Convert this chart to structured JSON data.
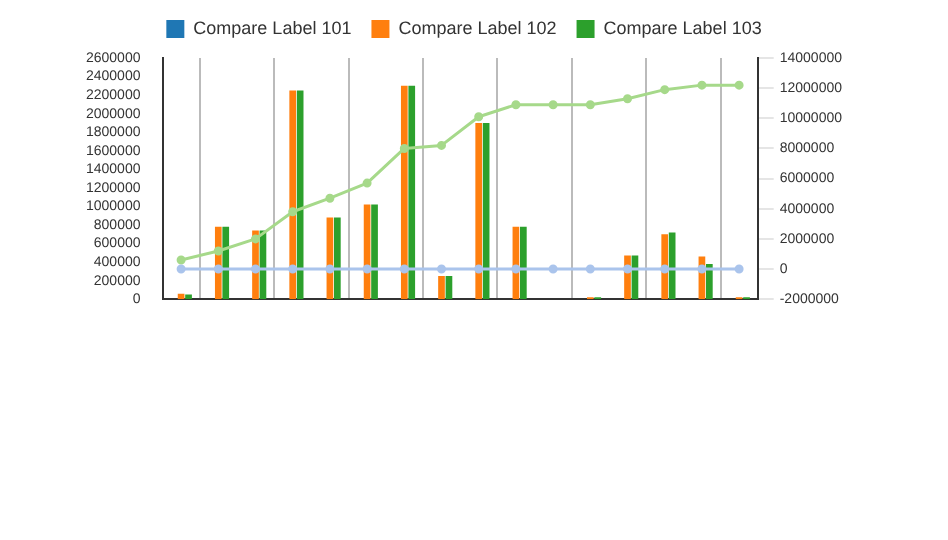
{
  "chart_data": {
    "type": "bar",
    "categories": [
      null,
      null,
      null,
      null,
      null,
      null,
      null,
      null,
      null,
      null,
      null,
      null,
      null,
      null,
      null,
      null
    ],
    "series": [
      {
        "name": "Compare Label 101",
        "color": "#1f77b4",
        "values": [
          0,
          0,
          0,
          0,
          0,
          0,
          0,
          0,
          0,
          0,
          0,
          0,
          0,
          0,
          0,
          0
        ]
      },
      {
        "name": "Compare Label 102",
        "color": "#ff7f0e",
        "values": [
          60000,
          780000,
          740000,
          2250000,
          880000,
          1020000,
          2300000,
          250000,
          1900000,
          780000,
          0,
          20000,
          470000,
          700000,
          460000,
          20000
        ]
      },
      {
        "name": "Compare Label 103",
        "color": "#2ca02c",
        "values": [
          50000,
          780000,
          740000,
          2250000,
          880000,
          1020000,
          2300000,
          250000,
          1900000,
          780000,
          0,
          20000,
          470000,
          720000,
          380000,
          20000
        ]
      },
      {
        "type": "line",
        "axis": "y2",
        "color": "#aac4ec",
        "values": [
          0,
          0,
          0,
          0,
          0,
          0,
          0,
          0,
          0,
          0,
          0,
          0,
          0,
          0,
          0,
          0
        ]
      },
      {
        "type": "line",
        "axis": "y2",
        "color": "#a6d98a",
        "values": [
          600000,
          1200000,
          2000000,
          3800000,
          4700000,
          5700000,
          8000000,
          8200000,
          10100000,
          10900000,
          10900000,
          10900000,
          11300000,
          11900000,
          12200000,
          12200000
        ]
      }
    ],
    "ylim": [
      0,
      2600000
    ],
    "yticks": [
      0,
      200000,
      400000,
      600000,
      800000,
      1000000,
      1200000,
      1400000,
      1600000,
      1800000,
      2000000,
      2200000,
      2400000,
      2600000
    ],
    "y2lim": [
      -2000000,
      14000000
    ],
    "y2ticks": [
      -2000000,
      0,
      2000000,
      4000000,
      6000000,
      8000000,
      10000000,
      12000000,
      14000000
    ],
    "grid": "x",
    "legend": "top",
    "marker": "circle"
  }
}
